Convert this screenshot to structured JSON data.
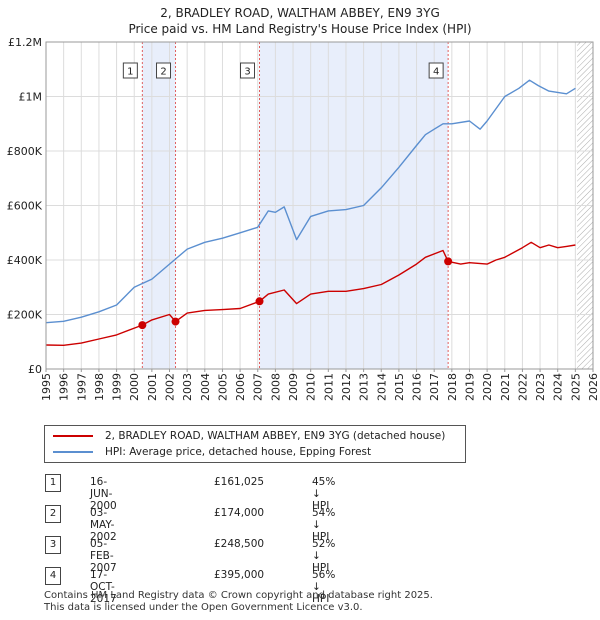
{
  "chart_data": {
    "type": "line",
    "title": "2, BRADLEY ROAD, WALTHAM ABBEY, EN9 3YG",
    "subtitle": "Price paid vs. HM Land Registry's House Price Index (HPI)",
    "xlabel": "",
    "ylabel": "",
    "xlim": [
      1995,
      2026
    ],
    "ylim": [
      0,
      1200000
    ],
    "x_ticks": [
      "1995",
      "1996",
      "1997",
      "1998",
      "1999",
      "2000",
      "2001",
      "2002",
      "2003",
      "2004",
      "2005",
      "2006",
      "2007",
      "2008",
      "2009",
      "2010",
      "2011",
      "2012",
      "2013",
      "2014",
      "2015",
      "2016",
      "2017",
      "2018",
      "2019",
      "2020",
      "2021",
      "2022",
      "2023",
      "2024",
      "2025",
      "2026"
    ],
    "y_ticks": [
      {
        "value": 0,
        "label": "£0"
      },
      {
        "value": 200000,
        "label": "£200K"
      },
      {
        "value": 400000,
        "label": "£400K"
      },
      {
        "value": 600000,
        "label": "£600K"
      },
      {
        "value": 800000,
        "label": "£800K"
      },
      {
        "value": 1000000,
        "label": "£1M"
      },
      {
        "value": 1200000,
        "label": "£1.2M"
      }
    ],
    "grid": true,
    "colors": {
      "property": "#cc0000",
      "hpi": "#5b8fd0",
      "shade": "#e8eefb",
      "marker_line": "#e06060",
      "hatch": "#888888"
    },
    "shaded_ranges": [
      [
        2000.46,
        2002.34
      ],
      [
        2007.1,
        2017.79
      ]
    ],
    "future_hatch_start": 2025.1,
    "series": [
      {
        "name": "2, BRADLEY ROAD, WALTHAM ABBEY, EN9 3YG (detached house)",
        "x": [
          1995.0,
          1996.0,
          1997.0,
          1998.0,
          1999.0,
          2000.46,
          2001.0,
          2002.0,
          2002.34,
          2003.0,
          2004.0,
          2005.0,
          2006.0,
          2007.1,
          2007.6,
          2008.5,
          2009.2,
          2010.0,
          2011.0,
          2012.0,
          2013.0,
          2014.0,
          2015.0,
          2016.0,
          2016.5,
          2017.5,
          2017.79,
          2018.5,
          2019.0,
          2020.0,
          2020.5,
          2021.0,
          2022.0,
          2022.5,
          2023.0,
          2023.5,
          2024.0,
          2024.5,
          2025.0
        ],
        "values": [
          88000,
          87000,
          95000,
          110000,
          125000,
          161025,
          180000,
          200000,
          174000,
          205000,
          215000,
          218000,
          222000,
          248500,
          275000,
          290000,
          240000,
          275000,
          285000,
          285000,
          295000,
          310000,
          345000,
          385000,
          410000,
          435000,
          395000,
          385000,
          390000,
          385000,
          400000,
          410000,
          445000,
          465000,
          445000,
          455000,
          445000,
          450000,
          455000
        ]
      },
      {
        "name": "HPI: Average price, detached house, Epping Forest",
        "x": [
          1995.0,
          1996.0,
          1997.0,
          1998.0,
          1999.0,
          2000.0,
          2001.0,
          2002.0,
          2003.0,
          2004.0,
          2005.0,
          2006.0,
          2007.0,
          2007.6,
          2008.0,
          2008.5,
          2009.2,
          2010.0,
          2011.0,
          2012.0,
          2013.0,
          2014.0,
          2015.0,
          2016.0,
          2016.5,
          2017.0,
          2017.5,
          2018.0,
          2019.0,
          2019.6,
          2020.0,
          2021.0,
          2021.8,
          2022.4,
          2022.9,
          2023.5,
          2024.0,
          2024.5,
          2025.0
        ],
        "values": [
          170000,
          175000,
          190000,
          210000,
          235000,
          300000,
          330000,
          385000,
          440000,
          465000,
          480000,
          500000,
          520000,
          580000,
          575000,
          595000,
          475000,
          560000,
          580000,
          585000,
          600000,
          665000,
          740000,
          820000,
          860000,
          880000,
          900000,
          900000,
          910000,
          880000,
          910000,
          1000000,
          1030000,
          1060000,
          1040000,
          1020000,
          1015000,
          1010000,
          1030000
        ]
      }
    ],
    "sales": [
      {
        "num": "1",
        "year": 2000.46,
        "price": 161025,
        "date": "16-JUN-2000",
        "price_label": "£161,025",
        "hpi_label": "45% ↓ HPI"
      },
      {
        "num": "2",
        "year": 2002.34,
        "price": 174000,
        "date": "03-MAY-2002",
        "price_label": "£174,000",
        "hpi_label": "54% ↓ HPI"
      },
      {
        "num": "3",
        "year": 2007.1,
        "price": 248500,
        "date": "05-FEB-2007",
        "price_label": "£248,500",
        "hpi_label": "52% ↓ HPI"
      },
      {
        "num": "4",
        "year": 2017.79,
        "price": 395000,
        "date": "17-OCT-2017",
        "price_label": "£395,000",
        "hpi_label": "56% ↓ HPI"
      }
    ]
  },
  "legend": {
    "property_label": "2, BRADLEY ROAD, WALTHAM ABBEY, EN9 3YG (detached house)",
    "hpi_label": "HPI: Average price, detached house, Epping Forest"
  },
  "footer": {
    "line1": "Contains HM Land Registry data © Crown copyright and database right 2025.",
    "line2": "This data is licensed under the Open Government Licence v3.0."
  }
}
